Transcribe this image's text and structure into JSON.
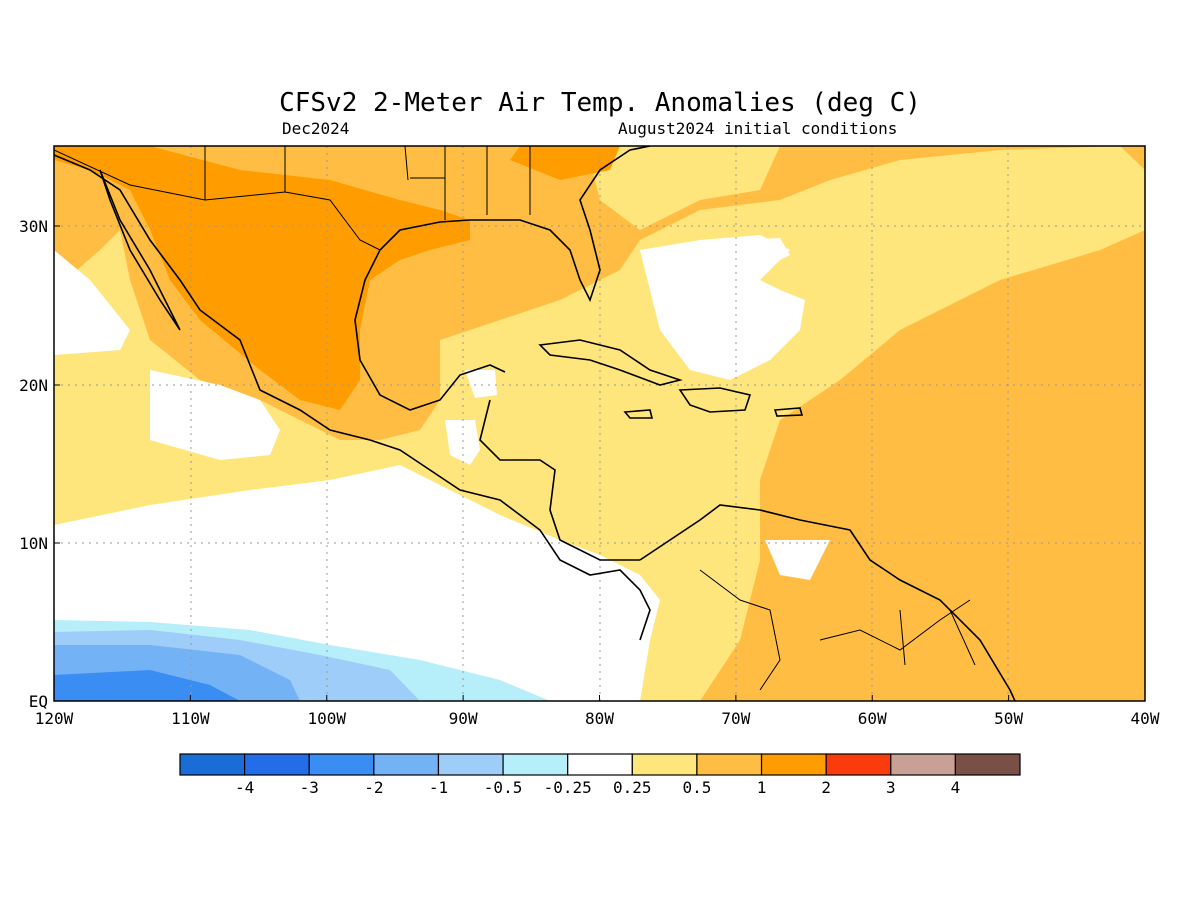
{
  "title": "CFSv2 2-Meter Air Temp. Anomalies (deg C)",
  "subtitle_left": "Dec2024",
  "subtitle_right": "August2024 initial conditions",
  "lat_labels": [
    "30N",
    "20N",
    "10N",
    "EQ"
  ],
  "lon_labels": [
    "120W",
    "110W",
    "100W",
    "90W",
    "80W",
    "70W",
    "60W",
    "50W",
    "40W"
  ],
  "colorbar": {
    "colors": [
      "#1a6cd7",
      "#236ee8",
      "#3a8df2",
      "#74b2f6",
      "#9dcdf8",
      "#b6eef9",
      "#ffffff",
      "#ffe67c",
      "#ffbe43",
      "#ff9d00",
      "#fa3b0c",
      "#c9a095",
      "#7a4f45"
    ],
    "labels": [
      "-4",
      "-3",
      "-2",
      "-1",
      "-0.5",
      "-0.25",
      "0.25",
      "0.5",
      "1",
      "2",
      "3",
      "4"
    ]
  }
}
